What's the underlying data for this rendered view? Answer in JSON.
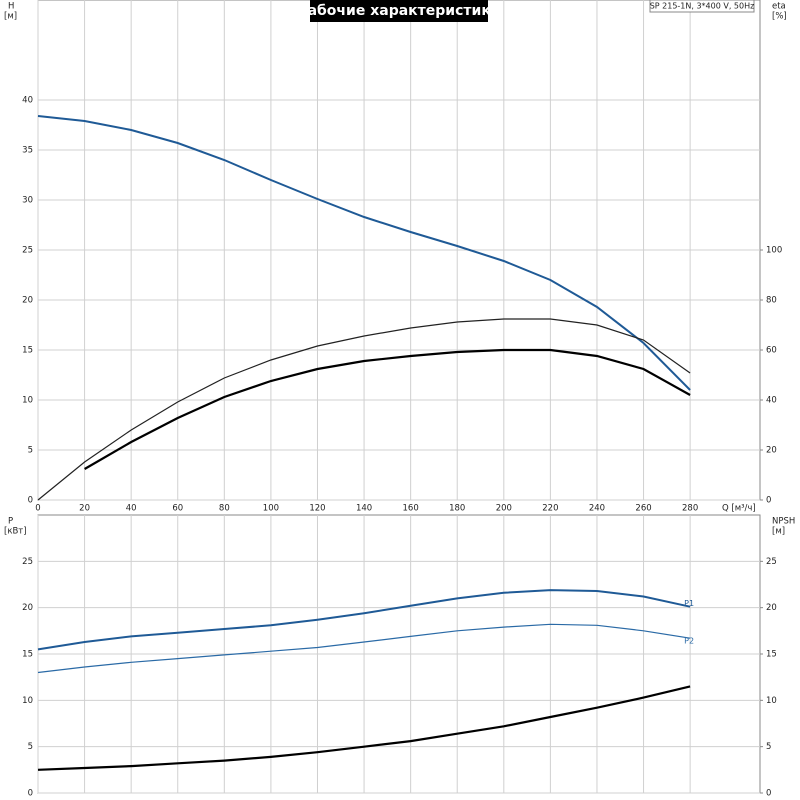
{
  "chart_data": [
    {
      "type": "line",
      "title": "Рабочие характеристики",
      "annotation": "SP 215-1N, 3*400 V, 50Hz",
      "ylabel": "H",
      "yunit": "[м]",
      "y2label": "eta",
      "y2unit": "[%]",
      "xlabel": "Q [м³/ч]",
      "xlim": [
        0,
        310
      ],
      "xticks": [
        0,
        20,
        40,
        60,
        80,
        100,
        120,
        140,
        160,
        180,
        200,
        220,
        240,
        260,
        280
      ],
      "ylim": [
        0,
        50
      ],
      "yticks": [
        0,
        5,
        10,
        15,
        20,
        25,
        30,
        35,
        40
      ],
      "y2lim": [
        0,
        200
      ],
      "y2ticks": [
        0,
        20,
        40,
        60,
        80,
        100
      ],
      "grid": true,
      "x": [
        0,
        20,
        40,
        60,
        80,
        100,
        120,
        140,
        160,
        180,
        200,
        220,
        240,
        260,
        280
      ],
      "series": [
        {
          "color": "#1f5a96",
          "linewidth": 2,
          "values": [
            38.4,
            37.9,
            37.0,
            35.7,
            34.0,
            32.0,
            30.1,
            28.3,
            26.8,
            25.4,
            23.9,
            22.0,
            19.3,
            15.7,
            11.0
          ]
        },
        {
          "color": "#222222",
          "linewidth": 1.2,
          "axis": "y2",
          "values": [
            0,
            15.2,
            28,
            39.2,
            48.8,
            56,
            61.6,
            65.6,
            68.8,
            71.2,
            72.4,
            72.4,
            70,
            64,
            50.8
          ]
        },
        {
          "color": "#000000",
          "linewidth": 2.2,
          "axis": "y2",
          "values": [
            null,
            12.4,
            23.2,
            32.8,
            41.2,
            47.6,
            52.4,
            55.6,
            57.6,
            59.2,
            60,
            60,
            57.6,
            52.4,
            42
          ]
        }
      ]
    },
    {
      "type": "line",
      "ylabel": "P",
      "yunit": "[кВт]",
      "y2label": "NPSH",
      "y2unit": "[м]",
      "xlim": [
        0,
        310
      ],
      "xticks": [
        0,
        20,
        40,
        60,
        80,
        100,
        120,
        140,
        160,
        180,
        200,
        220,
        240,
        260,
        280
      ],
      "ylim": [
        0,
        30
      ],
      "yticks": [
        0,
        5,
        10,
        15,
        20,
        25
      ],
      "y2lim": [
        0,
        30
      ],
      "y2ticks": [
        0,
        5,
        10,
        15,
        20,
        25
      ],
      "grid": true,
      "x": [
        0,
        20,
        40,
        60,
        80,
        100,
        120,
        140,
        160,
        180,
        200,
        220,
        240,
        260,
        280
      ],
      "series": [
        {
          "name": "P1",
          "color": "#1f5a96",
          "linewidth": 2,
          "values": [
            15.5,
            16.3,
            16.9,
            17.3,
            17.7,
            18.1,
            18.7,
            19.4,
            20.2,
            21.0,
            21.6,
            21.9,
            21.8,
            21.2,
            20.1
          ]
        },
        {
          "name": "P2",
          "color": "#2a6aa6",
          "linewidth": 1.2,
          "values": [
            13.0,
            13.6,
            14.1,
            14.5,
            14.9,
            15.3,
            15.7,
            16.3,
            16.9,
            17.5,
            17.9,
            18.2,
            18.1,
            17.5,
            16.7
          ]
        },
        {
          "color": "#000000",
          "linewidth": 2.2,
          "axis": "y2",
          "values": [
            2.5,
            2.7,
            2.9,
            3.2,
            3.5,
            3.9,
            4.4,
            5.0,
            5.6,
            6.4,
            7.2,
            8.2,
            9.2,
            10.3,
            11.5
          ]
        }
      ]
    }
  ]
}
